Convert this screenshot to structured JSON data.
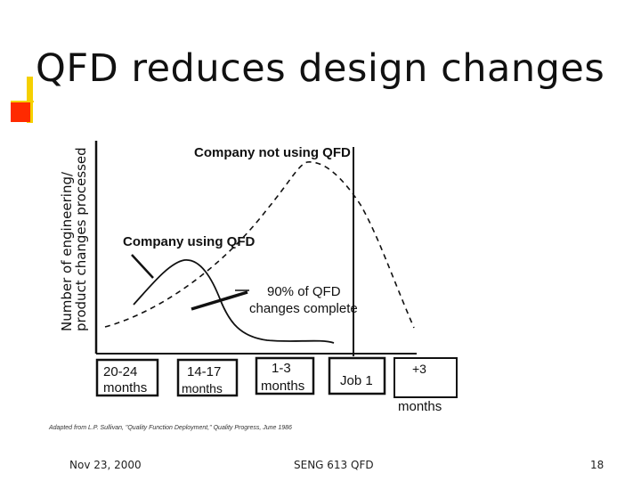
{
  "slide": {
    "title": "QFD reduces design changes",
    "footer": {
      "date": "Nov 23, 2000",
      "course": "SENG 613 QFD",
      "page": "18"
    }
  },
  "chart_data": {
    "type": "line",
    "ylabel_line1": "Number of engineering/",
    "ylabel_line2": "product changes processed",
    "series": [
      {
        "name": "Company not using QFD",
        "style": "dashed"
      },
      {
        "name": "Company using QFD",
        "style": "solid"
      }
    ],
    "annotation": {
      "line1": "90% of QFD",
      "line2": "changes complete"
    },
    "time_periods": [
      {
        "line1": "20-24",
        "line2": "months"
      },
      {
        "line1": "14-17",
        "line2": "months"
      },
      {
        "line1": "1-3",
        "line2": "months"
      },
      {
        "line1": "Job 1",
        "line2": ""
      },
      {
        "line1": "+3",
        "line2": "months"
      }
    ],
    "source": "Adapted from L.P. Sullivan, \"Quality Function Deployment,\" Quality Progress, June 1986",
    "colors": {
      "ink": "#111111",
      "accent_yellow": "#f5d000",
      "accent_red": "#ff2a00"
    }
  }
}
